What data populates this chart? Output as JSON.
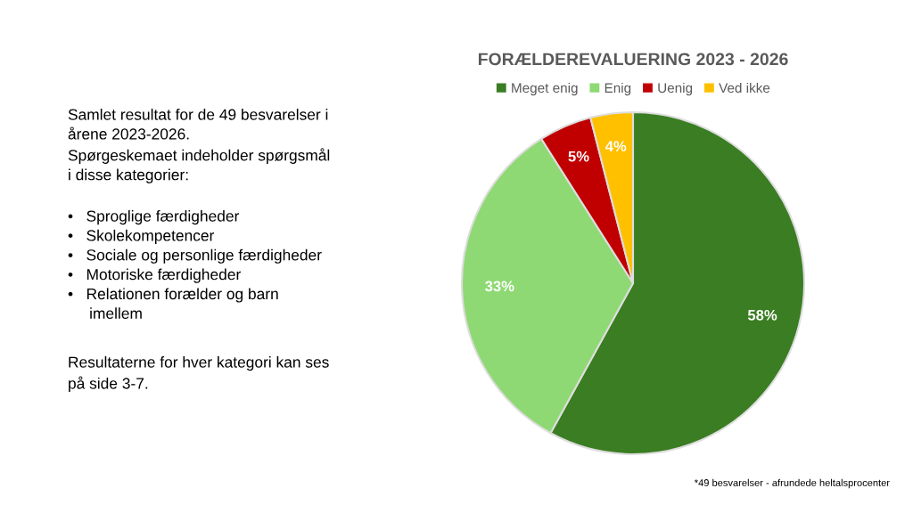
{
  "chart_data": {
    "type": "pie",
    "title": "FORÆLDEREVALUERING 2023 - 2026",
    "categories": [
      "Meget enig",
      "Enig",
      "Uenig",
      "Ved ikke"
    ],
    "values": [
      58,
      33,
      5,
      4
    ],
    "colors": [
      "#3a7d22",
      "#8ed973",
      "#c00000",
      "#ffc000"
    ],
    "value_labels": [
      "58%",
      "33%",
      "5%",
      "4%"
    ],
    "legend": "top",
    "annotations": [
      "Samlet resultat for de 49 besvarelser i\nårene 2023-2026.\nSpørgeskemaet indeholder spørgsmål\ni disse kategorier:",
      "•   Sproglige færdigheder\n•   Skolekompetencer\n•   Sociale og personlige færdigheder\n•   Motoriske færdigheder\n•   Relationen forælder og barn\n     imellem",
      "Resultaterne for hver kategori kan ses\npå side 3-7.",
      "*49 besvarelser - afrundede heltalsprocenter"
    ]
  }
}
